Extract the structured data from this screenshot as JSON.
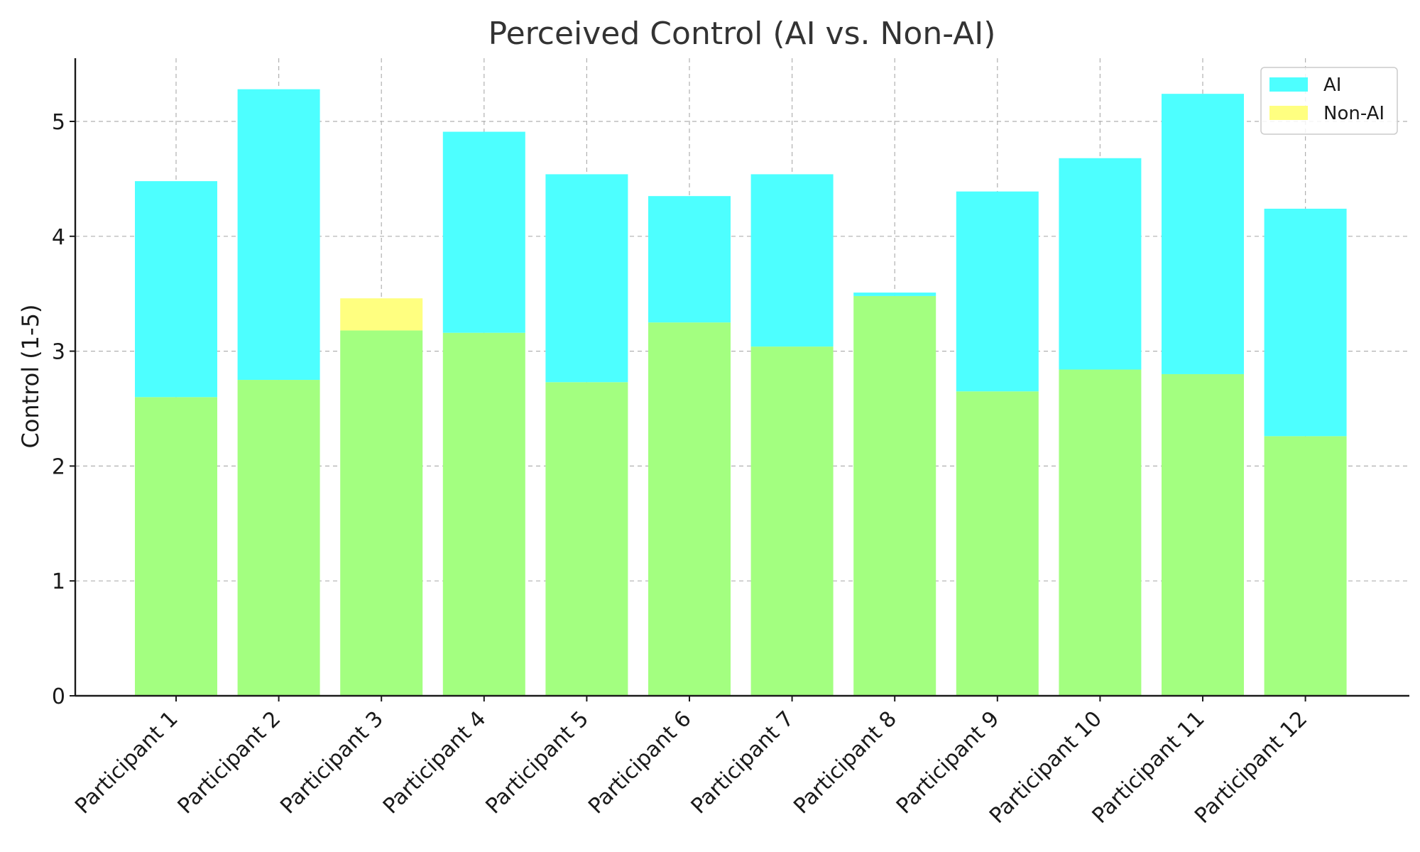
{
  "chart_data": {
    "type": "bar",
    "title": "Perceived Control (AI vs. Non-AI)",
    "xlabel": "",
    "ylabel": "Control (1-5)",
    "ylim": [
      0,
      5.55
    ],
    "yticks": [
      0,
      1,
      2,
      3,
      4,
      5
    ],
    "categories": [
      "Participant 1",
      "Participant 2",
      "Participant 3",
      "Participant 4",
      "Participant 5",
      "Participant 6",
      "Participant 7",
      "Participant 8",
      "Participant 9",
      "Participant 10",
      "Participant 11",
      "Participant 12"
    ],
    "series": [
      {
        "name": "AI",
        "color": "#4dffff",
        "values": [
          4.48,
          5.28,
          3.18,
          4.91,
          4.54,
          4.35,
          4.54,
          3.51,
          4.39,
          4.68,
          5.24,
          4.24
        ]
      },
      {
        "name": "Non-AI",
        "color": "#ffff80",
        "values": [
          2.6,
          2.75,
          3.46,
          3.16,
          2.73,
          3.25,
          3.04,
          3.48,
          2.65,
          2.84,
          2.8,
          2.26
        ]
      }
    ],
    "overlap_color": "#a3ff80",
    "grid": true,
    "legend_position": "top-right"
  }
}
